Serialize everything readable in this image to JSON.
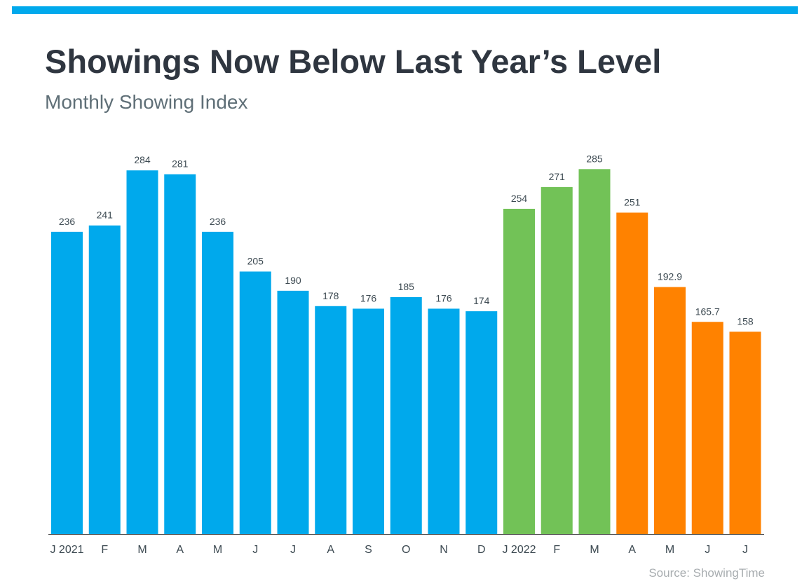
{
  "header": {
    "title": "Showings Now Below Last Year’s Level",
    "subtitle": "Monthly Showing Index"
  },
  "footer": {
    "source": "Source: ShowingTime"
  },
  "colors": {
    "top_bar": "#00a9ec",
    "series_2021": "#00a9ec",
    "series_2022_q1": "#72c257",
    "series_2022_q2": "#ff8200",
    "axis": "#4a4a4a",
    "labels": "#3d4a52"
  },
  "chart_data": {
    "type": "bar",
    "title": "Showings Now Below Last Year’s Level",
    "subtitle": "Monthly Showing Index",
    "xlabel": "",
    "ylabel": "",
    "ylim": [
      0,
      300
    ],
    "grid": false,
    "legend": "none",
    "categories": [
      "J 2021",
      "F",
      "M",
      "A",
      "M",
      "J",
      "J",
      "A",
      "S",
      "O",
      "N",
      "D",
      "J 2022",
      "F",
      "M",
      "A",
      "M",
      "J",
      "J"
    ],
    "values": [
      236,
      241,
      284,
      281,
      236,
      205,
      190,
      178,
      176,
      185,
      176,
      174,
      254,
      271,
      285,
      251,
      192.9,
      165.7,
      158
    ],
    "value_labels": [
      "236",
      "241",
      "284",
      "281",
      "236",
      "205",
      "190",
      "178",
      "176",
      "185",
      "176",
      "174",
      "254",
      "271",
      "285",
      "251",
      "192.9",
      "165.7",
      "158"
    ],
    "bar_colors": [
      "#00a9ec",
      "#00a9ec",
      "#00a9ec",
      "#00a9ec",
      "#00a9ec",
      "#00a9ec",
      "#00a9ec",
      "#00a9ec",
      "#00a9ec",
      "#00a9ec",
      "#00a9ec",
      "#00a9ec",
      "#72c257",
      "#72c257",
      "#72c257",
      "#ff8200",
      "#ff8200",
      "#ff8200",
      "#ff8200"
    ]
  }
}
